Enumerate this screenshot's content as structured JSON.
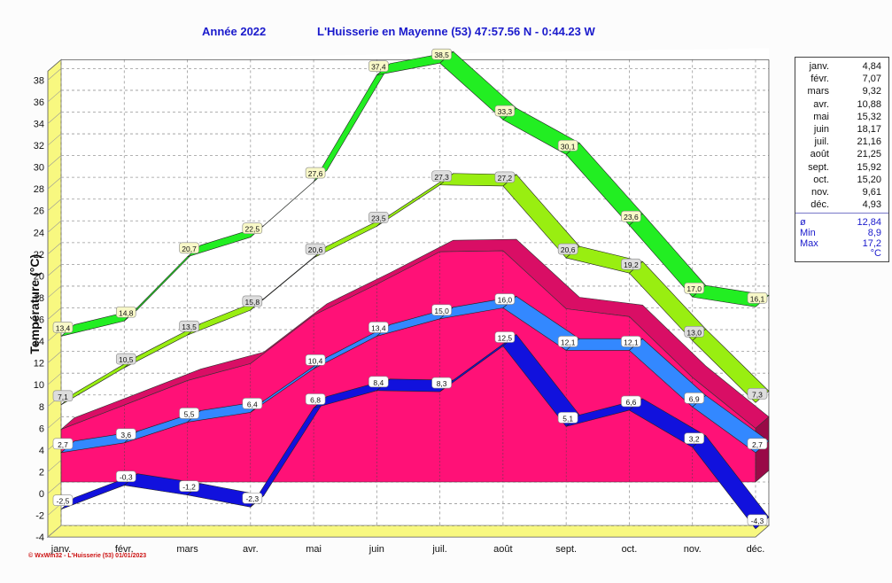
{
  "header": {
    "year_label": "Année  2022",
    "station_label": "L'Huisserie en Mayenne (53) 47:57.56 N - 0:44.23 W"
  },
  "chart_data": {
    "type": "line",
    "ylabel": "Température  (°C)",
    "ylim": [
      -4,
      38
    ],
    "yticks": [
      -4,
      -2,
      0,
      2,
      4,
      6,
      8,
      10,
      12,
      14,
      16,
      18,
      20,
      22,
      24,
      26,
      28,
      30,
      32,
      34,
      36,
      38
    ],
    "grid": true,
    "categories": [
      "janv.",
      "févr.",
      "mars",
      "avr.",
      "mai",
      "juin",
      "juil.",
      "août",
      "sept.",
      "oct.",
      "nov.",
      "déc."
    ],
    "series": [
      {
        "kind": "absolute-max",
        "color": "#22ee22",
        "label_bg": "#f8f8c8",
        "values": [
          13.4,
          14.8,
          20.7,
          22.5,
          27.6,
          37.4,
          38.5,
          33.3,
          30.1,
          23.6,
          17.0,
          16.1
        ],
        "labels": [
          "13,4",
          "14,8",
          "20,7",
          "22,5",
          "27,6",
          "37,4",
          "38,5",
          "33,3",
          "30,1",
          "23,6",
          "17,0",
          "16,1"
        ]
      },
      {
        "kind": "mean-max",
        "color": "#99ee11",
        "label_bg": "#dddddd",
        "values": [
          7.1,
          10.5,
          13.5,
          15.8,
          20.6,
          23.5,
          27.3,
          27.2,
          20.6,
          19.2,
          13.0,
          7.3
        ],
        "labels": [
          "7,1",
          "10,5",
          "13,5",
          "15,8",
          "20,6",
          "23,5",
          "27,3",
          "27,2",
          "20,6",
          "19,2",
          "13,0",
          "7,3"
        ]
      },
      {
        "kind": "mean-area",
        "color": "#ff1177",
        "values": [
          4.84,
          7.07,
          9.32,
          10.88,
          15.32,
          18.17,
          21.16,
          21.25,
          15.92,
          15.2,
          9.61,
          4.93
        ]
      },
      {
        "kind": "mean-min",
        "color": "#3388ff",
        "label_bg": "#ffffff",
        "values": [
          2.7,
          3.6,
          5.5,
          6.4,
          10.4,
          13.4,
          15.0,
          16.0,
          12.1,
          12.1,
          6.9,
          2.7
        ],
        "labels": [
          "2,7",
          "3,6",
          "5,5",
          "6,4",
          "10,4",
          "13,4",
          "15,0",
          "16,0",
          "12,1",
          "12,1",
          "6,9",
          "2,7"
        ]
      },
      {
        "kind": "absolute-min",
        "color": "#1111dd",
        "label_bg": "#ffffff",
        "values": [
          -2.5,
          -0.3,
          -1.2,
          -2.3,
          6.8,
          8.4,
          8.3,
          12.5,
          5.1,
          6.6,
          3.2,
          -4.3
        ],
        "labels": [
          "-2,5",
          "-0,3",
          "-1,2",
          "-2,3",
          "6,8",
          "8,4",
          "8,3",
          "12,5",
          "5,1",
          "6,6",
          "3,2",
          "-4,3"
        ]
      }
    ]
  },
  "legend": {
    "months": [
      {
        "name": "janv.",
        "value": "4,84"
      },
      {
        "name": "févr.",
        "value": "7,07"
      },
      {
        "name": "mars",
        "value": "9,32"
      },
      {
        "name": "avr.",
        "value": "10,88"
      },
      {
        "name": "mai",
        "value": "15,32"
      },
      {
        "name": "juin",
        "value": "18,17"
      },
      {
        "name": "juil.",
        "value": "21,16"
      },
      {
        "name": "août",
        "value": "21,25"
      },
      {
        "name": "sept.",
        "value": "15,92"
      },
      {
        "name": "oct.",
        "value": "15,20"
      },
      {
        "name": "nov.",
        "value": "9,61"
      },
      {
        "name": "déc.",
        "value": "4,93"
      }
    ],
    "stats": [
      {
        "name": "ø",
        "value": "12,84"
      },
      {
        "name": "Min",
        "value": "8,9"
      },
      {
        "name": "Max",
        "value": "17,2"
      }
    ],
    "unit": "°C"
  },
  "footer": "© WxWin32 - L'Huisserie (53)  01/01/2023"
}
